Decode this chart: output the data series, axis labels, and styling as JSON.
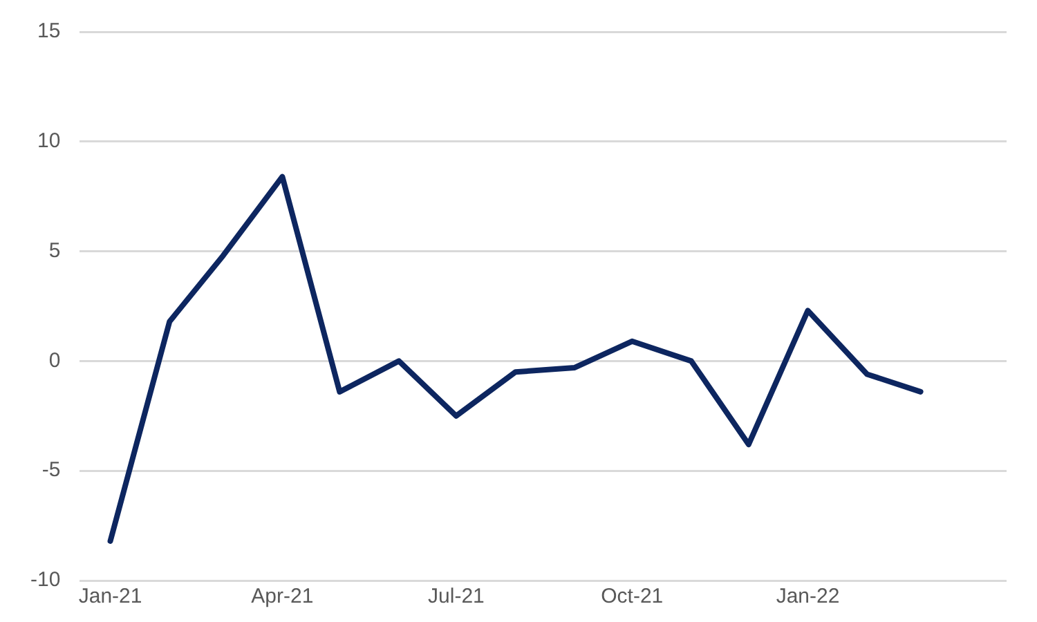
{
  "chart_data": {
    "type": "line",
    "x": [
      "2021-01",
      "2021-02",
      "2021-03",
      "2021-04",
      "2021-05",
      "2021-06",
      "2021-07",
      "2021-08",
      "2021-09",
      "2021-10",
      "2021-11",
      "2021-12",
      "2022-01",
      "2022-02",
      "2022-03"
    ],
    "series": [
      {
        "color": "#0d2660",
        "values": [
          -8.2,
          1.8,
          4.8,
          8.4,
          -1.4,
          0,
          -2.5,
          -0.5,
          -0.3,
          0.9,
          0,
          -3.8,
          2.3,
          -0.6,
          -1.4
        ]
      }
    ],
    "xlim": [
      "2020-12-16",
      "2022-04-15"
    ],
    "xticks": [
      {
        "value": "2021-01",
        "label": "Jan-21"
      },
      {
        "value": "2021-04",
        "label": "Apr-21"
      },
      {
        "value": "2021-07",
        "label": "Jul-21"
      },
      {
        "value": "2021-10",
        "label": "Oct-21"
      },
      {
        "value": "2022-01",
        "label": "Jan-22"
      }
    ],
    "ylim": [
      -10,
      15
    ],
    "yticks": [
      -10,
      -5,
      0,
      5,
      10,
      15
    ],
    "grid": "y",
    "legend": false,
    "marker": "none",
    "line_style": "solid"
  }
}
